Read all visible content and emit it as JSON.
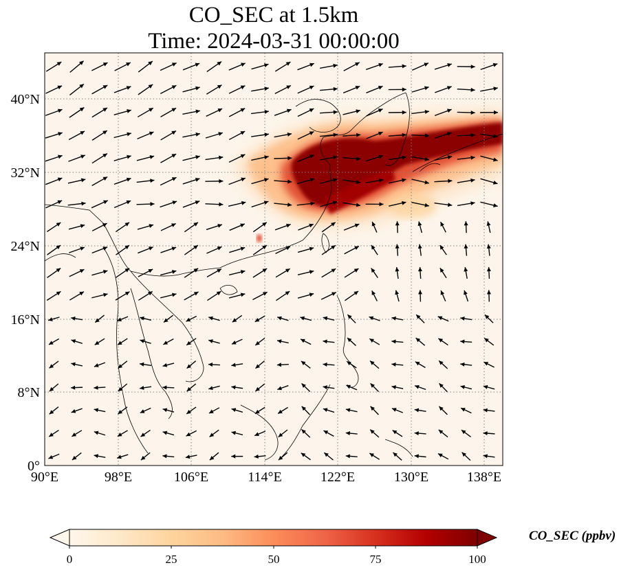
{
  "title": {
    "line1": "CO_SEC at 1.5km",
    "line2": "Time: 2024-03-31 00:00:00"
  },
  "colors": {
    "land_outline": "#000000",
    "gridline": "#808080",
    "ocean_background": "#fff5eb",
    "plume_dark": "#7f0000",
    "plume_mid": "#d7301f",
    "plume_light": "#fdbb84",
    "arrow": "#000000"
  },
  "chart_data": {
    "type": "heatmap",
    "variable": "CO_SEC",
    "height_level": "1.5km",
    "time": "2024-03-31 00:00:00",
    "lon_range": [
      90,
      140
    ],
    "lat_range": [
      0,
      45
    ],
    "x_ticks": [
      "90°E",
      "98°E",
      "106°E",
      "114°E",
      "122°E",
      "130°E",
      "138°E"
    ],
    "x_tick_values": [
      90,
      98,
      106,
      114,
      122,
      130,
      138
    ],
    "y_ticks": [
      "0°",
      "8°N",
      "16°N",
      "24°N",
      "32°N",
      "40°N"
    ],
    "y_tick_values": [
      0,
      8,
      16,
      24,
      32,
      40
    ],
    "grid": "on",
    "colorbar": {
      "label": "CO_SEC (ppbv)",
      "colormap": "OrRd",
      "range": [
        0,
        100
      ],
      "ticks": [
        0,
        25,
        50,
        75,
        100
      ],
      "tick_labels": [
        "0",
        "25",
        "50",
        "75",
        "100"
      ],
      "extend": "both"
    },
    "plume_regions": [
      {
        "desc": "main band",
        "lon_min": 116,
        "lon_max": 140,
        "lat_min": 29,
        "lat_max": 38,
        "level": 100
      },
      {
        "desc": "southern arm",
        "lon_min": 114,
        "lon_max": 127,
        "lat_min": 26,
        "lat_max": 31,
        "level": 90
      }
    ],
    "wind_vectors": "quiver arrows, predominantly westerly/southwesterly over East China and north Pacific, easterly trades in the South China Sea"
  }
}
